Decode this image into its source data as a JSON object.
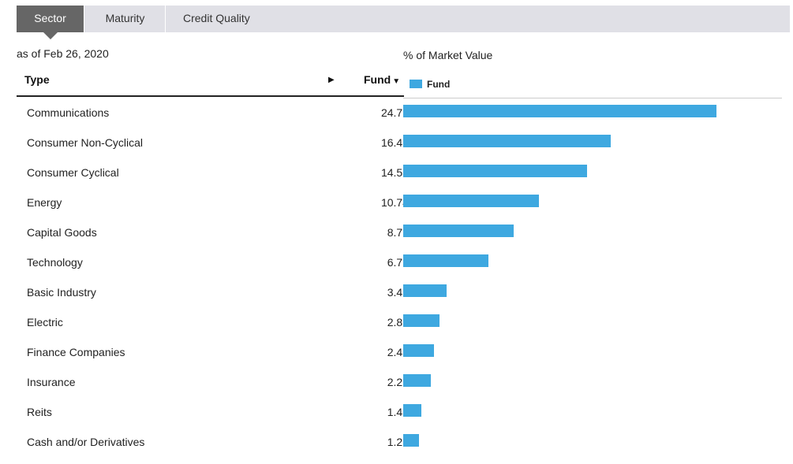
{
  "tabs": [
    {
      "label": "Sector",
      "active": true
    },
    {
      "label": "Maturity",
      "active": false
    },
    {
      "label": "Credit Quality",
      "active": false
    }
  ],
  "as_of": "as of Feb 26, 2020",
  "table": {
    "col_type": "Type",
    "col_fund": "Fund",
    "fund_sort_icon": "sort-down-triangle",
    "expand_icon": "play-triangle"
  },
  "colors": {
    "bar": "#3ea8e0",
    "active_tab": "#666666",
    "tab_bar": "#e0e0e6"
  },
  "chart_data": {
    "type": "bar",
    "orientation": "horizontal",
    "title": "% of Market Value",
    "legend": [
      "Fund"
    ],
    "categories": [
      "Communications",
      "Consumer Non-Cyclical",
      "Consumer Cyclical",
      "Energy",
      "Capital Goods",
      "Technology",
      "Basic Industry",
      "Electric",
      "Finance Companies",
      "Insurance",
      "Reits",
      "Cash and/or Derivatives"
    ],
    "series": [
      {
        "name": "Fund",
        "values": [
          "24.79",
          "16.42",
          "14.58",
          "10.74",
          "8.77",
          "6.72",
          "3.42",
          "2.86",
          "2.43",
          "2.21",
          "1.43",
          "1.28"
        ]
      }
    ],
    "xlim": [
      0,
      30
    ]
  }
}
